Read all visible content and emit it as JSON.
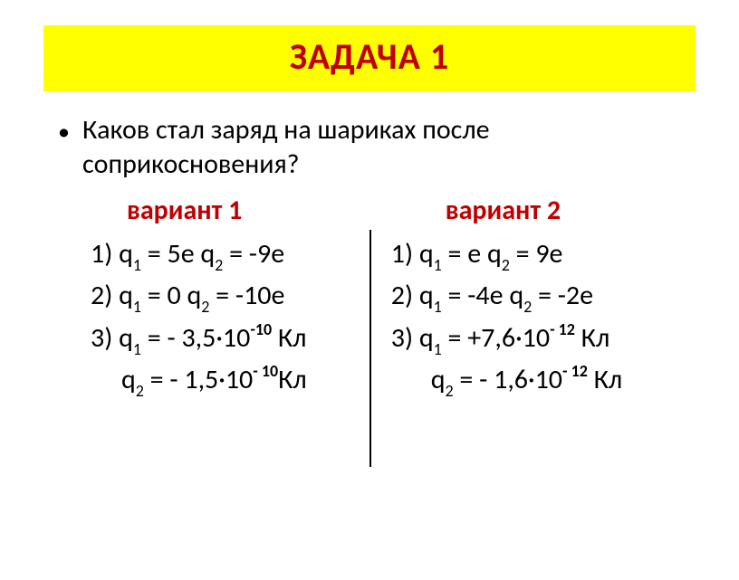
{
  "title": "ЗАДАЧА  1",
  "question": "Каков стал заряд на шариках после соприкосновения?",
  "variant1": {
    "header": "вариант  1",
    "l1_a": "1) q",
    "l1_b": " = 5e    q",
    "l1_c": " = -9e",
    "l2_a": "2) q",
    "l2_b": " = 0    q",
    "l2_c": " = -10e",
    "l3_a": "3) q",
    "l3_b": " = - 3,5·10",
    "l3_c": " Кл",
    "l3_exp": "-10",
    "l4_a": "q",
    "l4_b": " = - 1,5·10",
    "l4_c": "Кл",
    "l4_exp": "- 10"
  },
  "variant2": {
    "header": "вариант  2",
    "l1_a": "1) q",
    "l1_b": " = e    q",
    "l1_c": " = 9e",
    "l2_a": "2) q",
    "l2_b": " = -4e    q",
    "l2_c": " = -2e",
    "l3_a": " 3) q",
    "l3_b": " = +7,6·10",
    "l3_c": " Кл",
    "l3_exp": "- 12",
    "l4_a": "q",
    "l4_b": " = - 1,6·10",
    "l4_c": " Кл",
    "l4_exp": "- 12"
  },
  "sub1": "1",
  "sub2": "2"
}
